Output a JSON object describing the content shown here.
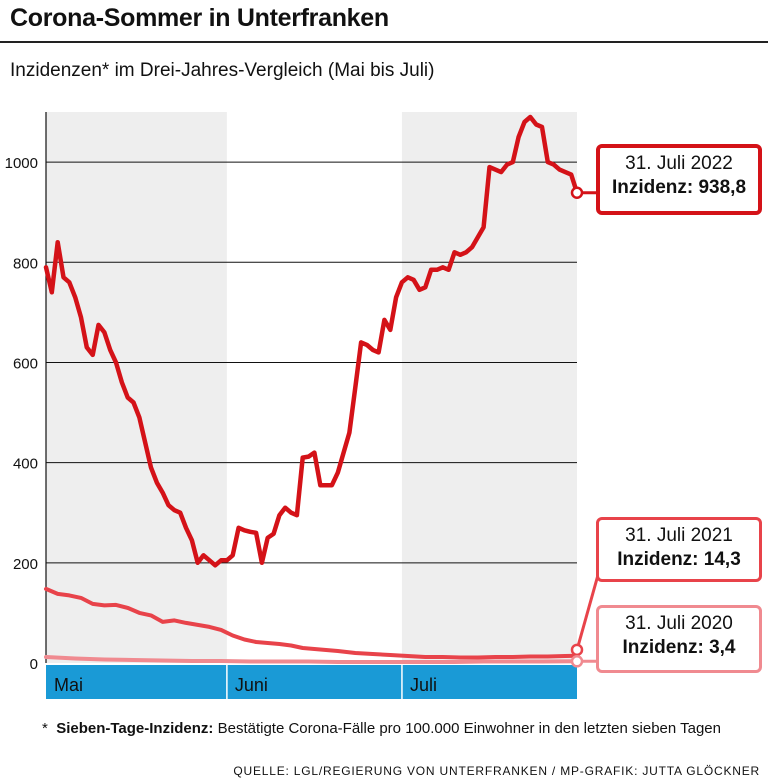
{
  "title": "Corona-Sommer in Unterfranken",
  "subtitle": "Inzidenzen* im Drei-Jahres-Vergleich (Mai bis Juli)",
  "footnote": {
    "marker": "*",
    "term": "Sieben-Tage-Inzidenz:",
    "text": "Bestätigte Corona-Fälle pro 100.000 Einwohner in den letzten sieben Tagen"
  },
  "source": "QUELLE: LGL/REGIERUNG VON UNTERFRANKEN / MP-GRAFIK: JUTTA GLÖCKNER",
  "colors": {
    "series_2022": "#d41218",
    "series_2021": "#e8434a",
    "series_2020": "#f08a90",
    "month_bar": "#1a9ad6",
    "shade": "#eeeeee"
  },
  "callouts": {
    "y2022": {
      "date": "31. Juli 2022",
      "value": "Inzidenz: 938,8"
    },
    "y2021": {
      "date": "31. Juli 2021",
      "value": "Inzidenz: 14,3"
    },
    "y2020": {
      "date": "31. Juli 2020",
      "value": "Inzidenz: 3,4"
    }
  },
  "chart_data": {
    "type": "line",
    "x_unit": "day since 1 May",
    "months": [
      "Mai",
      "Juni",
      "Juli"
    ],
    "xlim": [
      0,
      91
    ],
    "ylim": [
      0,
      1100
    ],
    "yticks": [
      0,
      200,
      400,
      600,
      800,
      1000
    ],
    "grid": true,
    "series": [
      {
        "name": "2022",
        "values": [
          [
            0,
            790
          ],
          [
            1,
            740
          ],
          [
            2,
            840
          ],
          [
            3,
            770
          ],
          [
            4,
            760
          ],
          [
            5,
            730
          ],
          [
            6,
            690
          ],
          [
            7,
            630
          ],
          [
            8,
            615
          ],
          [
            9,
            675
          ],
          [
            10,
            660
          ],
          [
            11,
            625
          ],
          [
            12,
            600
          ],
          [
            13,
            560
          ],
          [
            14,
            530
          ],
          [
            15,
            520
          ],
          [
            16,
            490
          ],
          [
            17,
            440
          ],
          [
            18,
            390
          ],
          [
            19,
            360
          ],
          [
            20,
            340
          ],
          [
            21,
            315
          ],
          [
            22,
            305
          ],
          [
            23,
            300
          ],
          [
            24,
            270
          ],
          [
            25,
            245
          ],
          [
            26,
            200
          ],
          [
            27,
            215
          ],
          [
            28,
            205
          ],
          [
            29,
            195
          ],
          [
            30,
            205
          ],
          [
            31,
            205
          ],
          [
            32,
            215
          ],
          [
            33,
            270
          ],
          [
            34,
            265
          ],
          [
            35,
            262
          ],
          [
            36,
            260
          ],
          [
            37,
            200
          ],
          [
            38,
            250
          ],
          [
            39,
            258
          ],
          [
            40,
            295
          ],
          [
            41,
            310
          ],
          [
            42,
            300
          ],
          [
            43,
            295
          ],
          [
            44,
            410
          ],
          [
            45,
            412
          ],
          [
            46,
            420
          ],
          [
            47,
            355
          ],
          [
            48,
            355
          ],
          [
            49,
            355
          ],
          [
            50,
            380
          ],
          [
            51,
            420
          ],
          [
            52,
            460
          ],
          [
            53,
            550
          ],
          [
            54,
            640
          ],
          [
            55,
            635
          ],
          [
            56,
            625
          ],
          [
            57,
            620
          ],
          [
            58,
            685
          ],
          [
            59,
            665
          ],
          [
            60,
            730
          ],
          [
            61,
            760
          ],
          [
            62,
            770
          ],
          [
            63,
            765
          ],
          [
            64,
            745
          ],
          [
            65,
            750
          ],
          [
            66,
            785
          ],
          [
            67,
            785
          ],
          [
            68,
            790
          ],
          [
            69,
            785
          ],
          [
            70,
            820
          ],
          [
            71,
            815
          ],
          [
            72,
            820
          ],
          [
            73,
            830
          ],
          [
            74,
            850
          ],
          [
            75,
            870
          ],
          [
            76,
            990
          ],
          [
            77,
            985
          ],
          [
            78,
            980
          ],
          [
            79,
            995
          ],
          [
            80,
            1000
          ],
          [
            81,
            1050
          ],
          [
            82,
            1080
          ],
          [
            83,
            1090
          ],
          [
            84,
            1075
          ],
          [
            85,
            1070
          ],
          [
            86,
            1000
          ],
          [
            87,
            995
          ],
          [
            88,
            985
          ],
          [
            89,
            980
          ],
          [
            90,
            975
          ],
          [
            91,
            938.8
          ]
        ]
      },
      {
        "name": "2021",
        "values": [
          [
            0,
            148
          ],
          [
            2,
            138
          ],
          [
            4,
            135
          ],
          [
            6,
            130
          ],
          [
            8,
            118
          ],
          [
            10,
            115
          ],
          [
            12,
            116
          ],
          [
            14,
            110
          ],
          [
            16,
            100
          ],
          [
            18,
            95
          ],
          [
            20,
            82
          ],
          [
            22,
            85
          ],
          [
            24,
            80
          ],
          [
            26,
            76
          ],
          [
            28,
            72
          ],
          [
            30,
            66
          ],
          [
            32,
            55
          ],
          [
            34,
            47
          ],
          [
            36,
            42
          ],
          [
            38,
            40
          ],
          [
            40,
            38
          ],
          [
            42,
            35
          ],
          [
            44,
            30
          ],
          [
            46,
            28
          ],
          [
            48,
            26
          ],
          [
            50,
            24
          ],
          [
            53,
            20
          ],
          [
            56,
            18
          ],
          [
            59,
            16
          ],
          [
            62,
            14
          ],
          [
            65,
            12
          ],
          [
            68,
            12
          ],
          [
            71,
            11
          ],
          [
            74,
            11
          ],
          [
            77,
            12
          ],
          [
            80,
            12
          ],
          [
            83,
            13
          ],
          [
            86,
            13
          ],
          [
            89,
            14
          ],
          [
            91,
            14.3
          ]
        ]
      },
      {
        "name": "2020",
        "values": [
          [
            0,
            12
          ],
          [
            5,
            9
          ],
          [
            10,
            7
          ],
          [
            15,
            6
          ],
          [
            20,
            5
          ],
          [
            25,
            4
          ],
          [
            30,
            4
          ],
          [
            35,
            3
          ],
          [
            40,
            3
          ],
          [
            45,
            3
          ],
          [
            50,
            2
          ],
          [
            55,
            2
          ],
          [
            60,
            2
          ],
          [
            65,
            2
          ],
          [
            70,
            2
          ],
          [
            75,
            3
          ],
          [
            80,
            3
          ],
          [
            85,
            3
          ],
          [
            91,
            3.4
          ]
        ]
      }
    ]
  }
}
